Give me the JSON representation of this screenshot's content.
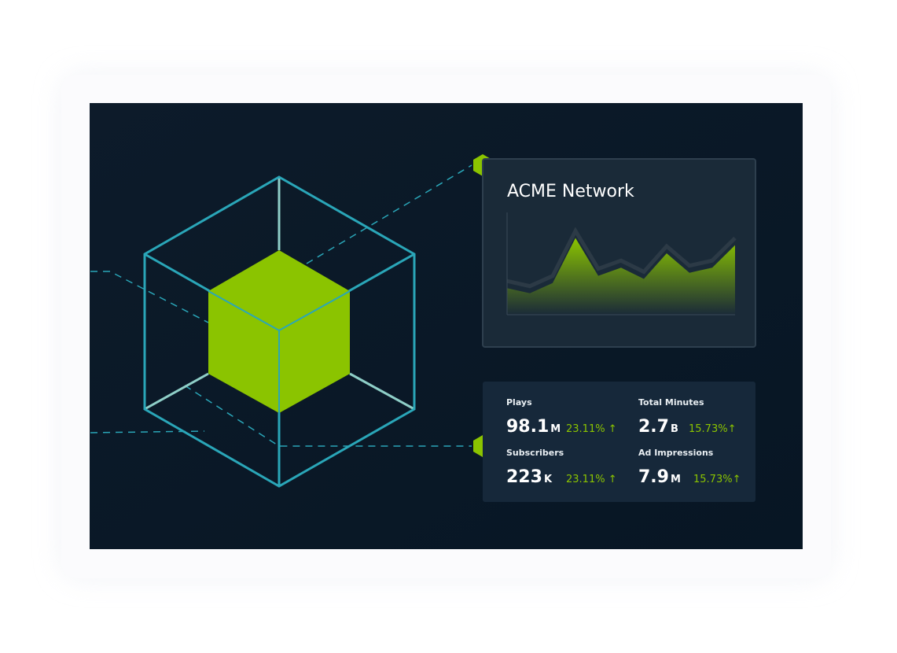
{
  "chart_data": {
    "type": "area",
    "title": "ACME Network",
    "values": [
      26,
      21,
      31,
      75,
      38,
      46,
      35,
      60,
      41,
      46,
      68
    ],
    "ylim": [
      0,
      100
    ],
    "color": "#8bc400"
  },
  "stats": [
    {
      "label": "Plays",
      "value": "98.1",
      "unit": "M",
      "change": "23.11% ↑"
    },
    {
      "label": "Total Minutes",
      "value": "2.7",
      "unit": "B",
      "change": "15.73%↑"
    },
    {
      "label": "Subscribers",
      "value": "223",
      "unit": "K",
      "change": "23.11% ↑"
    },
    {
      "label": "Ad Impressions",
      "value": "7.9",
      "unit": "M",
      "change": "15.73%↑"
    }
  ]
}
